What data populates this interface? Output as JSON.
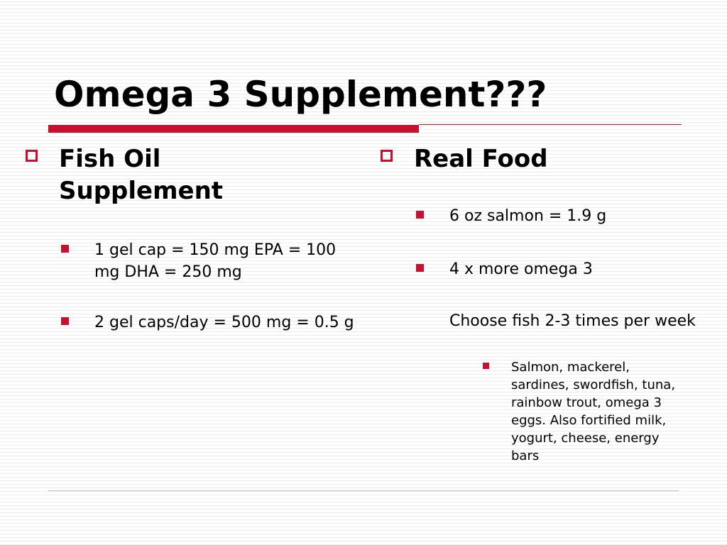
{
  "slide": {
    "title": "Omega 3 Supplement???"
  },
  "left_column": {
    "heading": "Fish Oil Supplement",
    "items": [
      "1 gel cap = 150 mg EPA = 100 mg DHA = 250 mg",
      "2 gel caps/day = 500 mg = 0.5 g"
    ]
  },
  "right_column": {
    "heading": "Real Food",
    "items": [
      "6 oz salmon = 1.9 g",
      "4 x more omega 3",
      "Choose fish 2-3 times per week"
    ],
    "subitems": [
      "Salmon, mackerel, sardines, swordfish, tuna, rainbow trout, omega 3 eggs.  Also fortified milk, yogurt, cheese, energy bars"
    ]
  },
  "colors": {
    "accent": "#c8102e",
    "text": "#000000",
    "background": "#ffffff"
  },
  "icons": {
    "heading_bullet": "hollow-square-icon",
    "item_bullet": "filled-square-icon"
  }
}
